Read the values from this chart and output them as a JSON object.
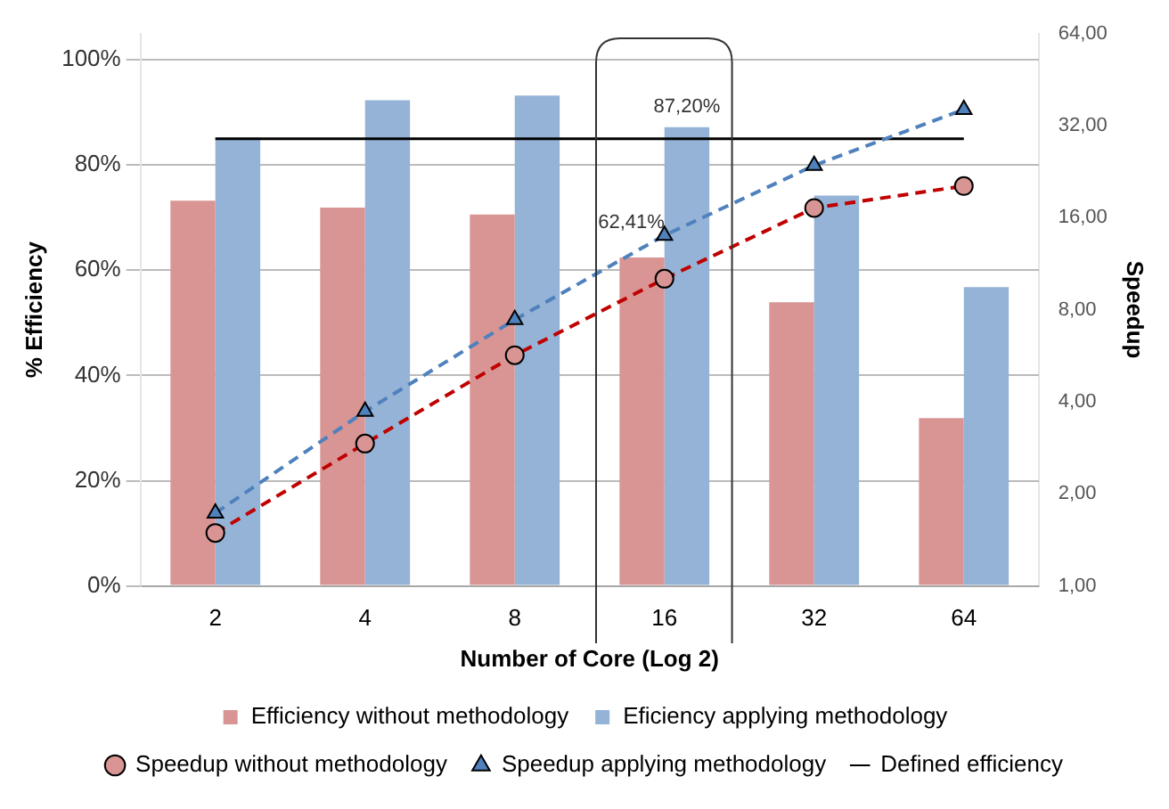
{
  "chart_data": {
    "type": "bar",
    "xlabel": "Number of Core (Log 2)",
    "ylabel": "% Efficiency",
    "y2label": "Speedup",
    "categories": [
      "2",
      "4",
      "8",
      "16",
      "32",
      "64"
    ],
    "series": [
      {
        "name": "Efficiency without methodology",
        "color": "#d99594",
        "values": [
          73.2,
          71.9,
          70.6,
          62.41,
          53.9,
          31.9
        ],
        "value_labels": [
          null,
          null,
          null,
          "62,41%",
          null,
          null
        ]
      },
      {
        "name": "Eficiency applying methodology",
        "color": "#95b3d7",
        "values": [
          85.2,
          92.3,
          93.2,
          87.2,
          74.2,
          56.8
        ],
        "value_labels": [
          null,
          null,
          null,
          "87,20%",
          null,
          null
        ]
      },
      {
        "name": "Speedup without methodology",
        "type": "line",
        "axis": "y2",
        "color": "#c00000",
        "marker": "circle",
        "line_style": "dashed",
        "values": [
          1.49,
          2.92,
          5.68,
          10.1,
          17.2,
          20.3
        ]
      },
      {
        "name": "Speedup applying methodology",
        "type": "line",
        "axis": "y2",
        "color": "#4f81bd",
        "marker": "triangle",
        "line_style": "dashed",
        "values": [
          1.73,
          3.72,
          7.42,
          14.0,
          23.7,
          36.1
        ]
      },
      {
        "name": "Defined efficiency",
        "type": "line",
        "color": "#000000",
        "marker": "none",
        "line_style": "solid",
        "values": [
          85,
          85,
          85,
          85,
          85,
          85
        ]
      }
    ],
    "ylim": [
      0,
      105
    ],
    "yticks": [
      {
        "value": 0,
        "label": "0%"
      },
      {
        "value": 20,
        "label": "20%"
      },
      {
        "value": 40,
        "label": "40%"
      },
      {
        "value": 60,
        "label": "60%"
      },
      {
        "value": 80,
        "label": "80%"
      },
      {
        "value": 100,
        "label": "100%"
      }
    ],
    "y2lim": [
      1,
      64
    ],
    "y2ticks": [
      {
        "value": 1,
        "label": "1,00"
      },
      {
        "value": 2,
        "label": "2,00"
      },
      {
        "value": 4,
        "label": "4,00"
      },
      {
        "value": 8,
        "label": "8,00"
      },
      {
        "value": 16,
        "label": "16,00"
      },
      {
        "value": 32,
        "label": "32,00"
      },
      {
        "value": 64,
        "label": "64,00"
      }
    ],
    "log": "y2",
    "grid": "y",
    "legend": "bottom"
  }
}
